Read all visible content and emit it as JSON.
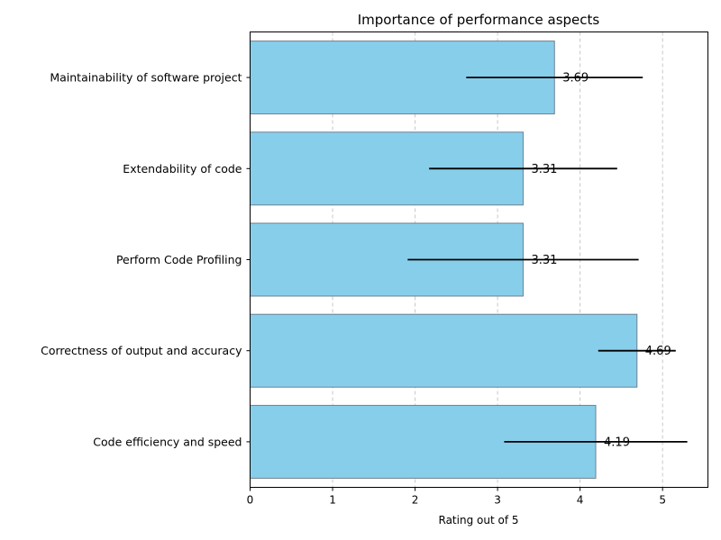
{
  "chart_data": {
    "type": "bar",
    "orientation": "horizontal",
    "title": "Importance of performance aspects",
    "xlabel": "Rating out of 5",
    "ylabel": "",
    "xlim": [
      0,
      5.55
    ],
    "xticks": [
      0,
      1,
      2,
      3,
      4,
      5
    ],
    "grid": "x-dashed",
    "legend": "none",
    "categories": [
      "Maintainability of software project",
      "Extendability of code",
      "Perform Code Profiling",
      "Correctness of output and accuracy",
      "Code efficiency and speed"
    ],
    "values": [
      3.69,
      3.31,
      3.31,
      4.69,
      4.19
    ],
    "value_labels": [
      "3.69",
      "3.31",
      "3.31",
      "4.69",
      "4.19"
    ],
    "error": [
      1.07,
      1.14,
      1.4,
      0.47,
      1.11
    ],
    "colors": {
      "bar_fill": "#87CEEB",
      "bar_edge": "#708090",
      "error_bar": "#000000",
      "grid": "#c8c8c8"
    }
  }
}
